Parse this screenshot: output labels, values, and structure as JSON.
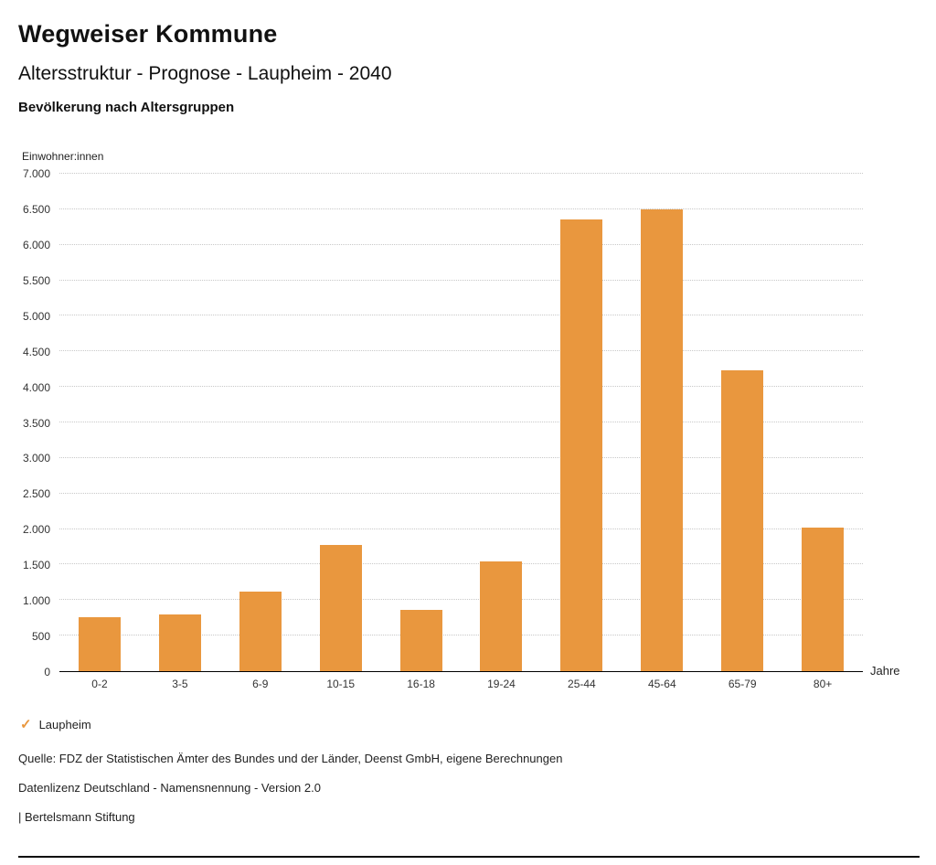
{
  "header": {
    "title": "Wegweiser Kommune",
    "subtitle": "Altersstruktur - Prognose - Laupheim - 2040",
    "section": "Bevölkerung nach Altersgruppen"
  },
  "chart_data": {
    "type": "bar",
    "title": "Bevölkerung nach Altersgruppen",
    "ylabel": "Einwohner:innen",
    "xlabel": "Jahre",
    "categories": [
      "0-2",
      "3-5",
      "6-9",
      "10-15",
      "16-18",
      "19-24",
      "25-44",
      "45-64",
      "65-79",
      "80+"
    ],
    "series": [
      {
        "name": "Laupheim",
        "values": [
          760,
          800,
          1120,
          1780,
          860,
          1550,
          6360,
          6500,
          4230,
          2020
        ]
      }
    ],
    "ylim": [
      0,
      7000
    ],
    "ytick_step": 500,
    "ytick_labels": [
      "0",
      "500",
      "1.000",
      "1.500",
      "2.000",
      "2.500",
      "3.000",
      "3.500",
      "4.000",
      "4.500",
      "5.000",
      "5.500",
      "6.000",
      "6.500",
      "7.000"
    ],
    "grid": "dotted-horizontal",
    "bar_color": "#E9973E",
    "legend_position": "bottom-left"
  },
  "legend": {
    "items": [
      {
        "label": "Laupheim",
        "color": "#E9973E",
        "check": "✓"
      }
    ]
  },
  "footer": {
    "source": "Quelle: FDZ der Statistischen Ämter des Bundes und der Länder, Deenst GmbH, eigene Berechnungen",
    "license": "Datenlizenz Deutschland - Namensnennung - Version 2.0",
    "publisher": "| Bertelsmann Stiftung"
  }
}
